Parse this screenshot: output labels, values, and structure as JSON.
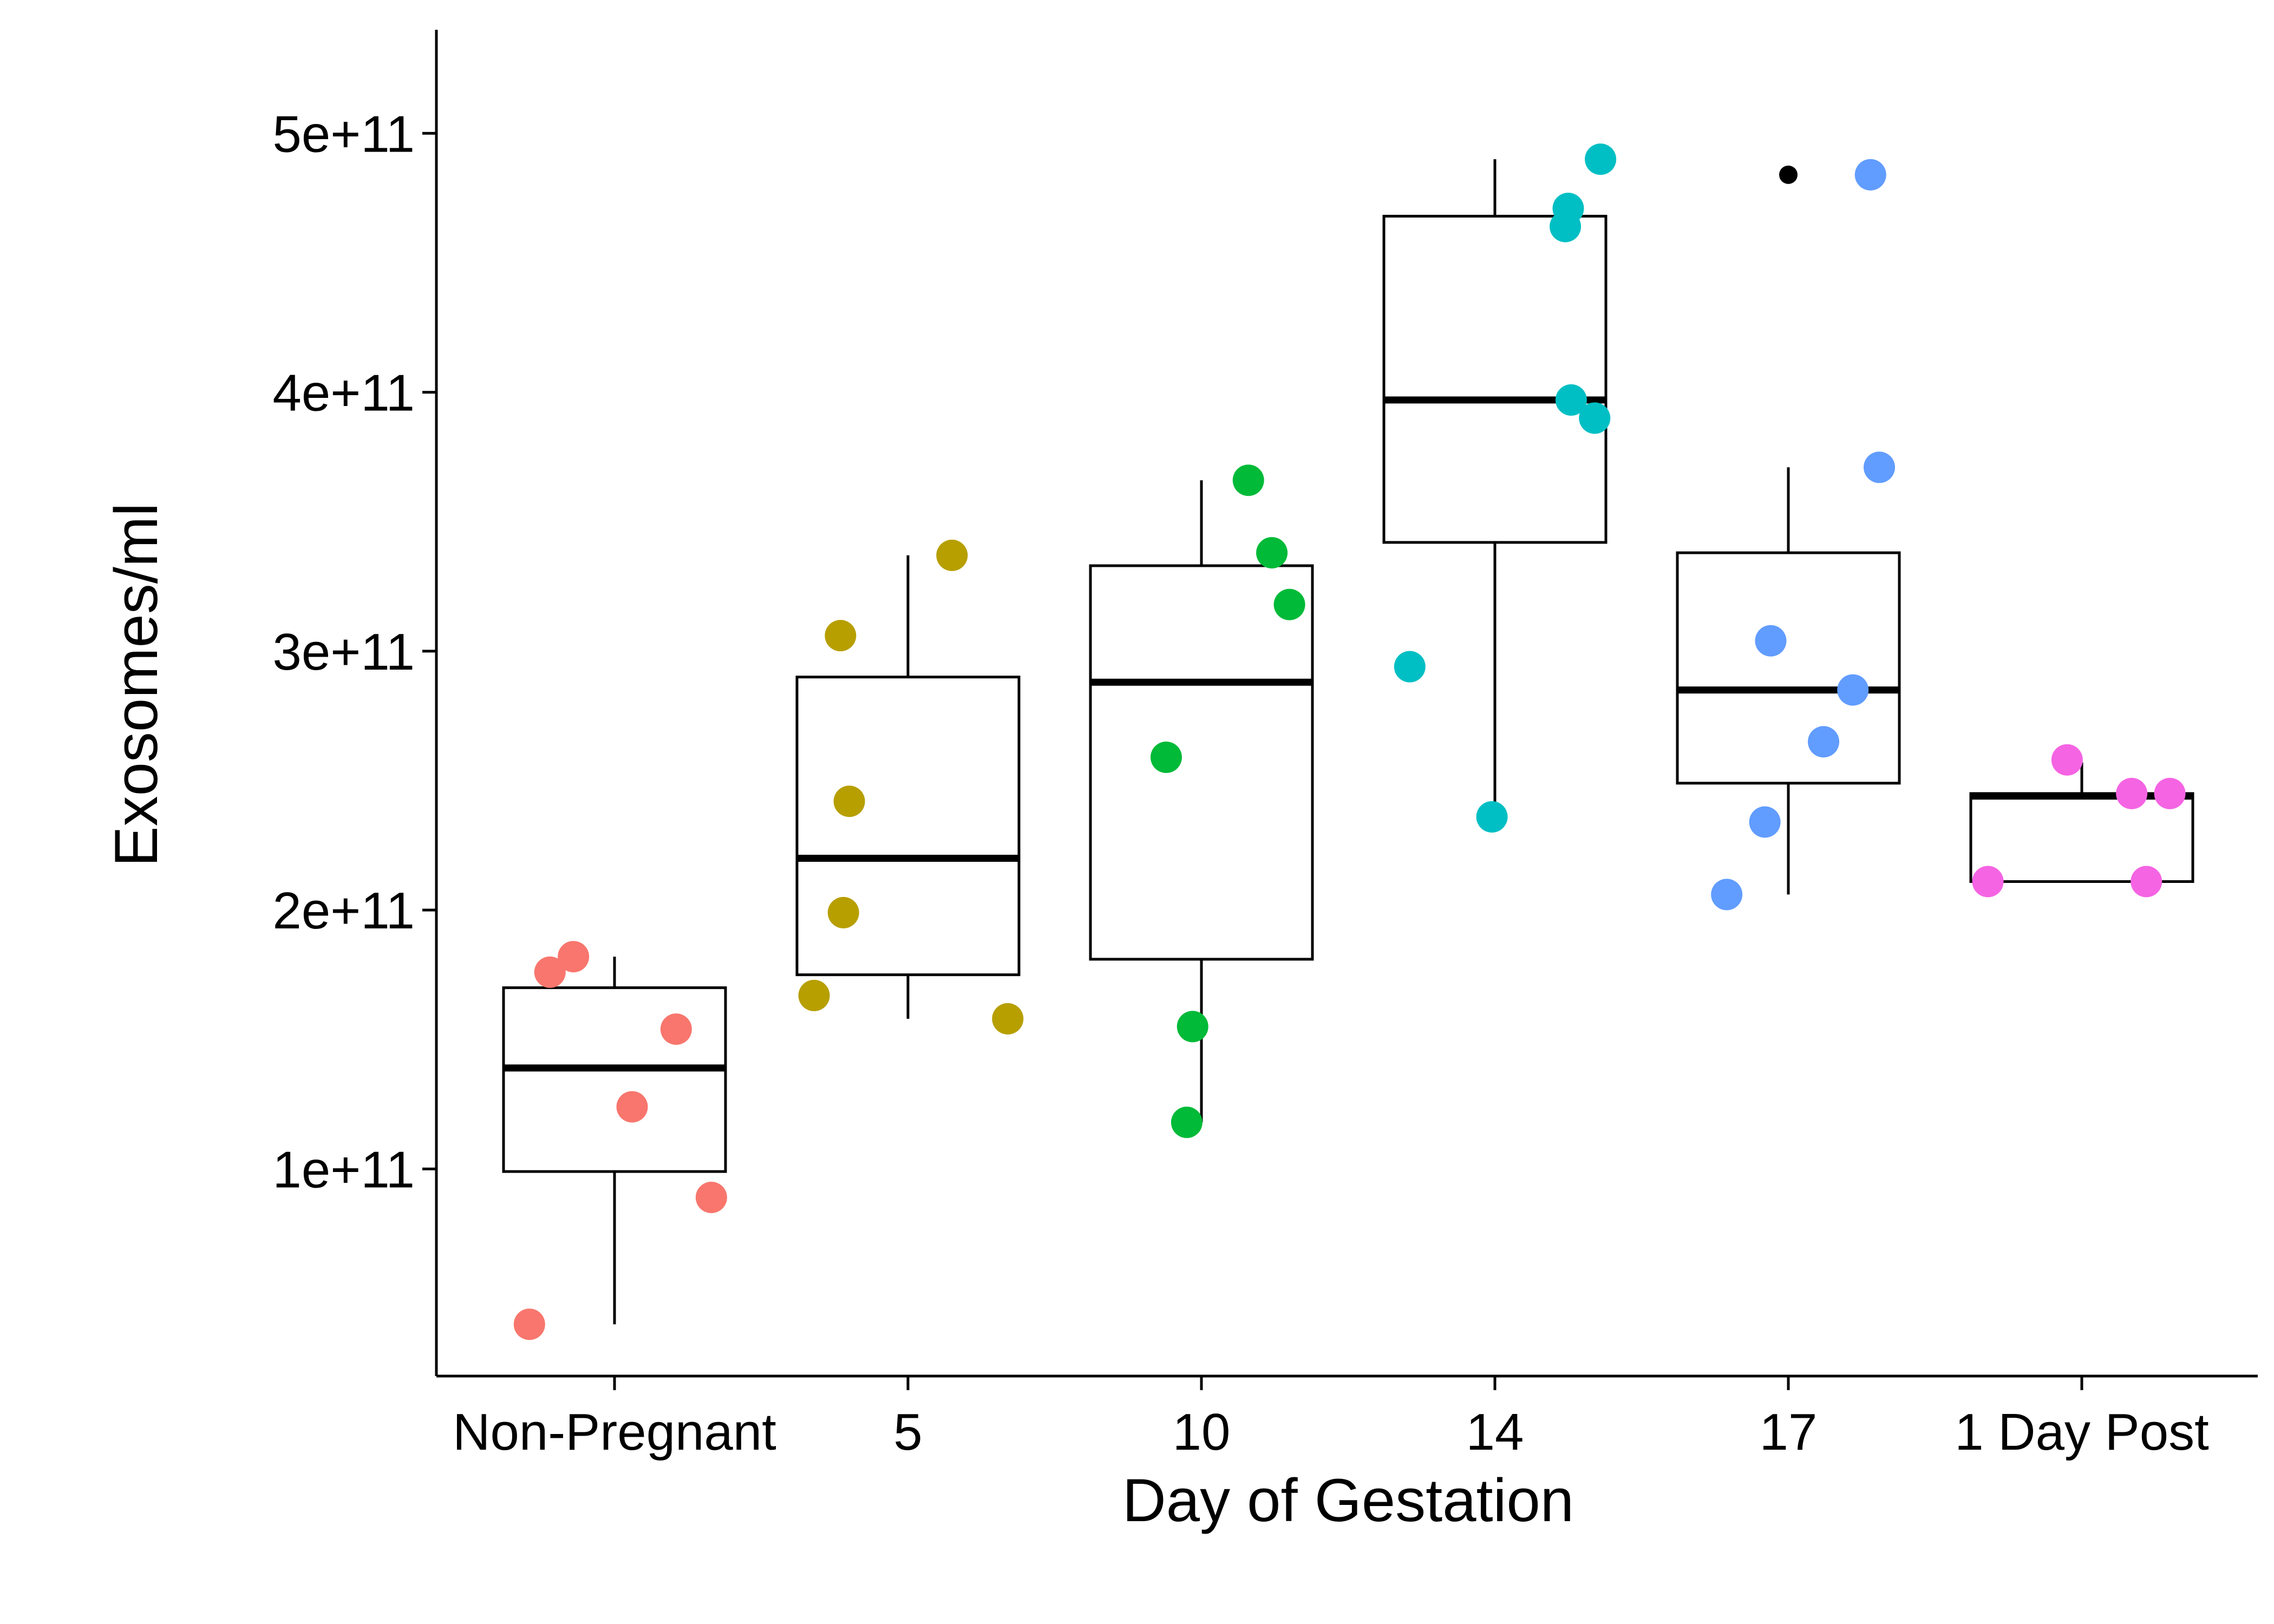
{
  "chart_data": {
    "type": "box",
    "xlabel": "Day of Gestation",
    "ylabel": "Exosomes/ml",
    "categories": [
      "Non-Pregnant",
      "5",
      "10",
      "14",
      "17",
      "1 Day Post"
    ],
    "ylim": [
      20000000000,
      540000000000
    ],
    "yticks": [
      100000000000,
      200000000000,
      300000000000,
      400000000000,
      500000000000
    ],
    "ytick_labels": [
      "1e+11",
      "2e+11",
      "3e+11",
      "4e+11",
      "5e+11"
    ],
    "grid": false,
    "legend": "none",
    "colors": [
      "#F8766D",
      "#B79F00",
      "#00BA38",
      "#00BFC4",
      "#619CFF",
      "#F564E3"
    ],
    "boxes": [
      {
        "category": "Non-Pregnant",
        "whisker_low": 40000000000,
        "q1": 99000000000,
        "median": 139000000000,
        "q3": 170000000000,
        "whisker_high": 182000000000,
        "outliers": []
      },
      {
        "category": "5",
        "whisker_low": 158000000000,
        "q1": 175000000000,
        "median": 220000000000,
        "q3": 290000000000,
        "whisker_high": 337000000000,
        "outliers": []
      },
      {
        "category": "10",
        "whisker_low": 118000000000,
        "q1": 181000000000,
        "median": 288000000000,
        "q3": 333000000000,
        "whisker_high": 366000000000,
        "outliers": []
      },
      {
        "category": "14",
        "whisker_low": 236000000000,
        "q1": 342000000000,
        "median": 397000000000,
        "q3": 468000000000,
        "whisker_high": 490000000000,
        "outliers": []
      },
      {
        "category": "17",
        "whisker_low": 206000000000,
        "q1": 249000000000,
        "median": 285000000000,
        "q3": 338000000000,
        "whisker_high": 371000000000,
        "outliers": [
          484000000000
        ]
      },
      {
        "category": "1 Day Post",
        "whisker_low": 211000000000,
        "q1": 211000000000,
        "median": 244000000000,
        "q3": 245000000000,
        "whisker_high": 257000000000,
        "outliers": []
      }
    ],
    "points": [
      {
        "category": "Non-Pregnant",
        "jitter": -0.29,
        "y": 40000000000
      },
      {
        "category": "Non-Pregnant",
        "jitter": -0.22,
        "y": 176000000000
      },
      {
        "category": "Non-Pregnant",
        "jitter": -0.14,
        "y": 182000000000
      },
      {
        "category": "Non-Pregnant",
        "jitter": 0.06,
        "y": 124000000000
      },
      {
        "category": "Non-Pregnant",
        "jitter": 0.21,
        "y": 154000000000
      },
      {
        "category": "Non-Pregnant",
        "jitter": 0.33,
        "y": 89000000000
      },
      {
        "category": "5",
        "jitter": -0.32,
        "y": 167000000000
      },
      {
        "category": "5",
        "jitter": -0.23,
        "y": 306000000000
      },
      {
        "category": "5",
        "jitter": -0.22,
        "y": 199000000000
      },
      {
        "category": "5",
        "jitter": -0.2,
        "y": 242000000000
      },
      {
        "category": "5",
        "jitter": 0.15,
        "y": 337000000000
      },
      {
        "category": "5",
        "jitter": 0.34,
        "y": 158000000000
      },
      {
        "category": "10",
        "jitter": -0.12,
        "y": 259000000000
      },
      {
        "category": "10",
        "jitter": -0.05,
        "y": 118000000000
      },
      {
        "category": "10",
        "jitter": -0.03,
        "y": 155000000000
      },
      {
        "category": "10",
        "jitter": 0.16,
        "y": 366000000000
      },
      {
        "category": "10",
        "jitter": 0.24,
        "y": 338000000000
      },
      {
        "category": "10",
        "jitter": 0.3,
        "y": 318000000000
      },
      {
        "category": "14",
        "jitter": -0.29,
        "y": 294000000000
      },
      {
        "category": "14",
        "jitter": -0.01,
        "y": 236000000000
      },
      {
        "category": "14",
        "jitter": 0.24,
        "y": 464000000000
      },
      {
        "category": "14",
        "jitter": 0.25,
        "y": 471000000000
      },
      {
        "category": "14",
        "jitter": 0.26,
        "y": 397000000000
      },
      {
        "category": "14",
        "jitter": 0.34,
        "y": 390000000000
      },
      {
        "category": "14",
        "jitter": 0.36,
        "y": 490000000000
      },
      {
        "category": "17",
        "jitter": -0.21,
        "y": 206000000000
      },
      {
        "category": "17",
        "jitter": -0.08,
        "y": 234000000000
      },
      {
        "category": "17",
        "jitter": -0.06,
        "y": 304000000000
      },
      {
        "category": "17",
        "jitter": 0.12,
        "y": 265000000000
      },
      {
        "category": "17",
        "jitter": 0.22,
        "y": 285000000000
      },
      {
        "category": "17",
        "jitter": 0.28,
        "y": 484000000000
      },
      {
        "category": "17",
        "jitter": 0.31,
        "y": 371000000000
      },
      {
        "category": "1 Day Post",
        "jitter": -0.32,
        "y": 211000000000
      },
      {
        "category": "1 Day Post",
        "jitter": -0.05,
        "y": 258000000000
      },
      {
        "category": "1 Day Post",
        "jitter": 0.17,
        "y": 245000000000
      },
      {
        "category": "1 Day Post",
        "jitter": 0.22,
        "y": 211000000000
      },
      {
        "category": "1 Day Post",
        "jitter": 0.3,
        "y": 245000000000
      }
    ]
  }
}
